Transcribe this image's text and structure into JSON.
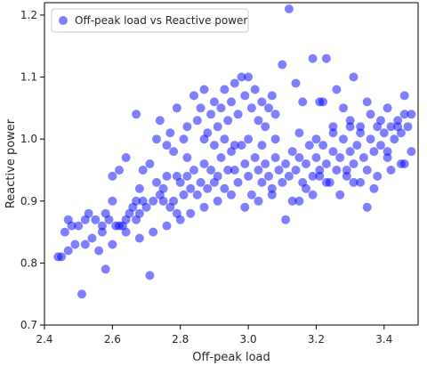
{
  "chart_data": {
    "type": "scatter",
    "xlabel": "Off-peak load",
    "ylabel": "Reactive power",
    "xlim": [
      2.4,
      3.5
    ],
    "ylim": [
      0.7,
      1.22
    ],
    "xticks": [
      2.4,
      2.6,
      2.8,
      3.0,
      3.2,
      3.4
    ],
    "yticks": [
      0.7,
      0.8,
      0.9,
      1.0,
      1.1,
      1.2
    ],
    "xtick_labels": [
      "2.4",
      "2.6",
      "2.8",
      "3.0",
      "3.2",
      "3.4"
    ],
    "ytick_labels": [
      "0.7",
      "0.8",
      "0.9",
      "1.0",
      "1.1",
      "1.2"
    ],
    "grid": false,
    "legend_position": "top-left",
    "series": [
      {
        "name": "Off-peak load vs Reactive power",
        "color": "#0000ff",
        "alpha": 0.5,
        "points": [
          [
            2.44,
            0.81
          ],
          [
            2.45,
            0.81
          ],
          [
            2.46,
            0.85
          ],
          [
            2.47,
            0.87
          ],
          [
            2.47,
            0.82
          ],
          [
            2.48,
            0.86
          ],
          [
            2.49,
            0.83
          ],
          [
            2.5,
            0.86
          ],
          [
            2.51,
            0.75
          ],
          [
            2.52,
            0.87
          ],
          [
            2.52,
            0.83
          ],
          [
            2.53,
            0.88
          ],
          [
            2.55,
            0.87
          ],
          [
            2.56,
            0.82
          ],
          [
            2.57,
            0.86
          ],
          [
            2.58,
            0.88
          ],
          [
            2.58,
            0.79
          ],
          [
            2.59,
            0.87
          ],
          [
            2.6,
            0.9
          ],
          [
            2.6,
            0.83
          ],
          [
            2.62,
            0.86
          ],
          [
            2.63,
            0.86
          ],
          [
            2.64,
            0.87
          ],
          [
            2.65,
            0.88
          ],
          [
            2.66,
            0.89
          ],
          [
            2.67,
            0.9
          ],
          [
            2.67,
            0.87
          ],
          [
            2.68,
            0.92
          ],
          [
            2.68,
            0.88
          ],
          [
            2.69,
            0.9
          ],
          [
            2.7,
            0.89
          ],
          [
            2.71,
            0.78
          ],
          [
            2.72,
            0.9
          ],
          [
            2.73,
            0.93
          ],
          [
            2.74,
            0.91
          ],
          [
            2.75,
            0.92
          ],
          [
            2.75,
            0.9
          ],
          [
            2.76,
            0.94
          ],
          [
            2.77,
            0.89
          ],
          [
            2.78,
            0.9
          ],
          [
            2.79,
            0.94
          ],
          [
            2.8,
            0.87
          ],
          [
            2.8,
            0.93
          ],
          [
            2.81,
            0.91
          ],
          [
            2.82,
            0.94
          ],
          [
            2.83,
            0.92
          ],
          [
            2.84,
            0.95
          ],
          [
            2.85,
            0.91
          ],
          [
            2.86,
            0.93
          ],
          [
            2.87,
            0.96
          ],
          [
            2.88,
            0.92
          ],
          [
            2.89,
            0.95
          ],
          [
            2.9,
            0.93
          ],
          [
            2.91,
            0.94
          ],
          [
            2.92,
            0.97
          ],
          [
            2.93,
            0.92
          ],
          [
            2.94,
            0.95
          ],
          [
            2.95,
            0.98
          ],
          [
            2.96,
            0.95
          ],
          [
            2.97,
            0.93
          ],
          [
            2.98,
            0.99
          ],
          [
            2.99,
            0.96
          ],
          [
            3.0,
            0.94
          ],
          [
            3.01,
            0.91
          ],
          [
            3.02,
            0.97
          ],
          [
            3.03,
            0.95
          ],
          [
            3.04,
            0.93
          ],
          [
            3.05,
            0.96
          ],
          [
            3.06,
            0.94
          ],
          [
            3.07,
            0.91
          ],
          [
            3.08,
            0.97
          ],
          [
            3.09,
            0.95
          ],
          [
            3.1,
            0.93
          ],
          [
            3.11,
            0.96
          ],
          [
            3.12,
            0.94
          ],
          [
            3.13,
            0.98
          ],
          [
            3.14,
            0.95
          ],
          [
            3.15,
            0.97
          ],
          [
            3.16,
            0.93
          ],
          [
            3.17,
            0.96
          ],
          [
            3.18,
            0.99
          ],
          [
            3.19,
            0.94
          ],
          [
            3.2,
            0.97
          ],
          [
            3.21,
            0.95
          ],
          [
            3.22,
            0.99
          ],
          [
            3.23,
            0.96
          ],
          [
            3.24,
            0.93
          ],
          [
            3.25,
            0.98
          ],
          [
            3.26,
            0.95
          ],
          [
            3.27,
            0.97
          ],
          [
            3.28,
            1.0
          ],
          [
            3.29,
            0.94
          ],
          [
            3.3,
            0.98
          ],
          [
            3.31,
            0.96
          ],
          [
            3.32,
            0.99
          ],
          [
            3.33,
            1.01
          ],
          [
            3.34,
            0.97
          ],
          [
            3.35,
            0.95
          ],
          [
            3.36,
            1.0
          ],
          [
            3.37,
            0.98
          ],
          [
            3.38,
            1.02
          ],
          [
            3.39,
            0.99
          ],
          [
            3.4,
            1.01
          ],
          [
            3.41,
            0.98
          ],
          [
            3.42,
            1.02
          ],
          [
            3.43,
            1.0
          ],
          [
            3.44,
            1.03
          ],
          [
            3.45,
            1.01
          ],
          [
            3.46,
            1.04
          ],
          [
            3.47,
            1.02
          ],
          [
            3.48,
            1.04
          ],
          [
            2.74,
            1.03
          ],
          [
            2.76,
            0.99
          ],
          [
            2.78,
            0.98
          ],
          [
            2.79,
            1.05
          ],
          [
            2.82,
            1.02
          ],
          [
            2.84,
            1.07
          ],
          [
            2.85,
            1.03
          ],
          [
            2.86,
            1.05
          ],
          [
            2.87,
            1.08
          ],
          [
            2.88,
            1.01
          ],
          [
            2.89,
            1.04
          ],
          [
            2.9,
            1.06
          ],
          [
            2.91,
            1.02
          ],
          [
            2.92,
            1.05
          ],
          [
            2.93,
            1.08
          ],
          [
            2.94,
            1.03
          ],
          [
            2.95,
            1.06
          ],
          [
            2.96,
            1.09
          ],
          [
            2.97,
            1.04
          ],
          [
            2.98,
            1.1
          ],
          [
            2.99,
            1.07
          ],
          [
            3.0,
            1.1
          ],
          [
            3.01,
            1.05
          ],
          [
            3.02,
            1.08
          ],
          [
            3.03,
            1.03
          ],
          [
            3.04,
            1.06
          ],
          [
            3.05,
            1.02
          ],
          [
            3.06,
            1.05
          ],
          [
            3.07,
            1.07
          ],
          [
            3.08,
            1.04
          ],
          [
            3.1,
            1.12
          ],
          [
            3.12,
            1.21
          ],
          [
            3.14,
            1.09
          ],
          [
            3.16,
            1.06
          ],
          [
            3.19,
            1.13
          ],
          [
            3.21,
            1.06
          ],
          [
            3.23,
            1.13
          ],
          [
            3.25,
            1.02
          ],
          [
            3.26,
            1.08
          ],
          [
            3.28,
            1.05
          ],
          [
            3.3,
            1.03
          ],
          [
            3.31,
            1.1
          ],
          [
            3.33,
            1.02
          ],
          [
            3.35,
            1.06
          ],
          [
            3.36,
            1.04
          ],
          [
            3.39,
            1.03
          ],
          [
            3.41,
            1.05
          ],
          [
            3.44,
            1.02
          ],
          [
            3.46,
            1.07
          ],
          [
            3.48,
            0.98
          ],
          [
            3.46,
            0.96
          ],
          [
            3.41,
            0.97
          ],
          [
            3.38,
            0.94
          ],
          [
            3.35,
            0.89
          ],
          [
            3.31,
            0.93
          ],
          [
            3.27,
            0.91
          ],
          [
            3.23,
            0.93
          ],
          [
            3.19,
            0.91
          ],
          [
            3.15,
            0.9
          ],
          [
            3.11,
            0.87
          ],
          [
            3.07,
            0.92
          ],
          [
            3.03,
            0.9
          ],
          [
            2.99,
            0.89
          ],
          [
            2.95,
            0.91
          ],
          [
            2.91,
            0.9
          ],
          [
            2.87,
            0.89
          ],
          [
            2.83,
            0.88
          ],
          [
            2.79,
            0.88
          ],
          [
            2.76,
            0.86
          ],
          [
            2.72,
            0.85
          ],
          [
            2.68,
            0.84
          ],
          [
            2.64,
            0.85
          ],
          [
            2.61,
            0.86
          ],
          [
            2.57,
            0.85
          ],
          [
            2.54,
            0.84
          ],
          [
            2.87,
            1.0
          ],
          [
            2.9,
            0.99
          ],
          [
            2.93,
            1.0
          ],
          [
            2.96,
            0.99
          ],
          [
            3.0,
            1.0
          ],
          [
            3.04,
            0.99
          ],
          [
            3.08,
            1.0
          ],
          [
            3.15,
            1.01
          ],
          [
            3.2,
            1.0
          ],
          [
            3.25,
            1.01
          ],
          [
            3.3,
            1.02
          ],
          [
            2.6,
            0.94
          ],
          [
            2.62,
            0.95
          ],
          [
            2.64,
            0.97
          ],
          [
            2.67,
            1.04
          ],
          [
            2.69,
            0.95
          ],
          [
            2.71,
            0.96
          ],
          [
            2.73,
            1.0
          ],
          [
            2.77,
            1.01
          ],
          [
            2.81,
            1.0
          ],
          [
            2.82,
            0.97
          ],
          [
            3.13,
            0.9
          ],
          [
            3.17,
            0.92
          ],
          [
            3.21,
            0.94
          ],
          [
            3.29,
            0.95
          ],
          [
            3.33,
            0.93
          ],
          [
            3.37,
            0.92
          ],
          [
            3.42,
            0.95
          ],
          [
            3.45,
            0.96
          ],
          [
            3.22,
            1.06
          ]
        ]
      }
    ]
  }
}
